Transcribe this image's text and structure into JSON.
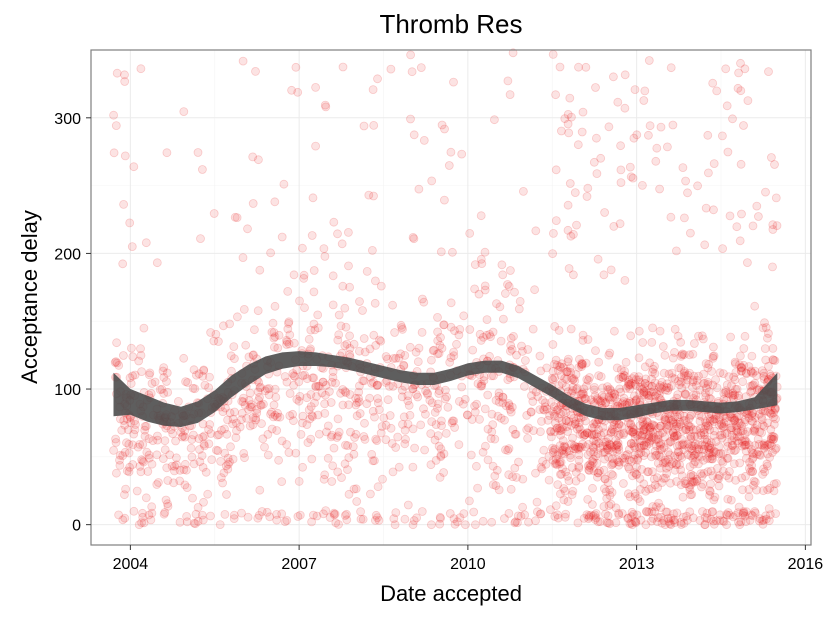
{
  "chart_data": {
    "type": "scatter",
    "title": "Thromb Res",
    "xlabel": "Date accepted",
    "ylabel": "Acceptance delay",
    "xlim": [
      2003.3,
      2016.1
    ],
    "ylim": [
      -15,
      350
    ],
    "grid": true,
    "x_ticks": [
      2004,
      2007,
      2010,
      2013,
      2016
    ],
    "x_tick_labels": [
      "2004",
      "2007",
      "2010",
      "2013",
      "2016"
    ],
    "y_ticks": [
      0,
      100,
      200,
      300
    ],
    "y_tick_labels": [
      "0",
      "100",
      "200",
      "300"
    ],
    "point_color": "#e41a1c",
    "point_alpha": 0.12,
    "point_count_estimate": 2600,
    "point_x_range": [
      2003.7,
      2015.5
    ],
    "point_y_range": [
      0,
      350
    ],
    "smooth": {
      "method": "loess",
      "band_color": "#4d4d4d",
      "x": [
        2003.7,
        2004.0,
        2004.3,
        2004.6,
        2004.9,
        2005.2,
        2005.5,
        2005.8,
        2006.1,
        2006.4,
        2006.7,
        2007.0,
        2007.3,
        2007.6,
        2007.9,
        2008.2,
        2008.5,
        2008.8,
        2009.1,
        2009.4,
        2009.7,
        2010.0,
        2010.3,
        2010.6,
        2010.9,
        2011.2,
        2011.5,
        2011.8,
        2012.1,
        2012.4,
        2012.7,
        2013.0,
        2013.3,
        2013.6,
        2013.9,
        2014.2,
        2014.5,
        2014.8,
        2015.1,
        2015.5
      ],
      "lower": [
        80,
        81,
        76,
        73,
        72,
        75,
        83,
        94,
        103,
        111,
        115,
        117,
        117,
        116,
        114,
        111,
        108,
        105,
        103,
        103,
        106,
        110,
        112,
        112,
        108,
        101,
        94,
        86,
        80,
        77,
        77,
        79,
        82,
        84,
        84,
        83,
        82,
        83,
        85,
        88
      ],
      "upper": [
        112,
        100,
        95,
        90,
        87,
        91,
        99,
        110,
        118,
        124,
        127,
        128,
        127,
        125,
        123,
        120,
        117,
        114,
        112,
        112,
        115,
        119,
        121,
        121,
        117,
        110,
        103,
        95,
        89,
        86,
        86,
        88,
        90,
        92,
        92,
        91,
        90,
        91,
        94,
        112
      ]
    }
  }
}
